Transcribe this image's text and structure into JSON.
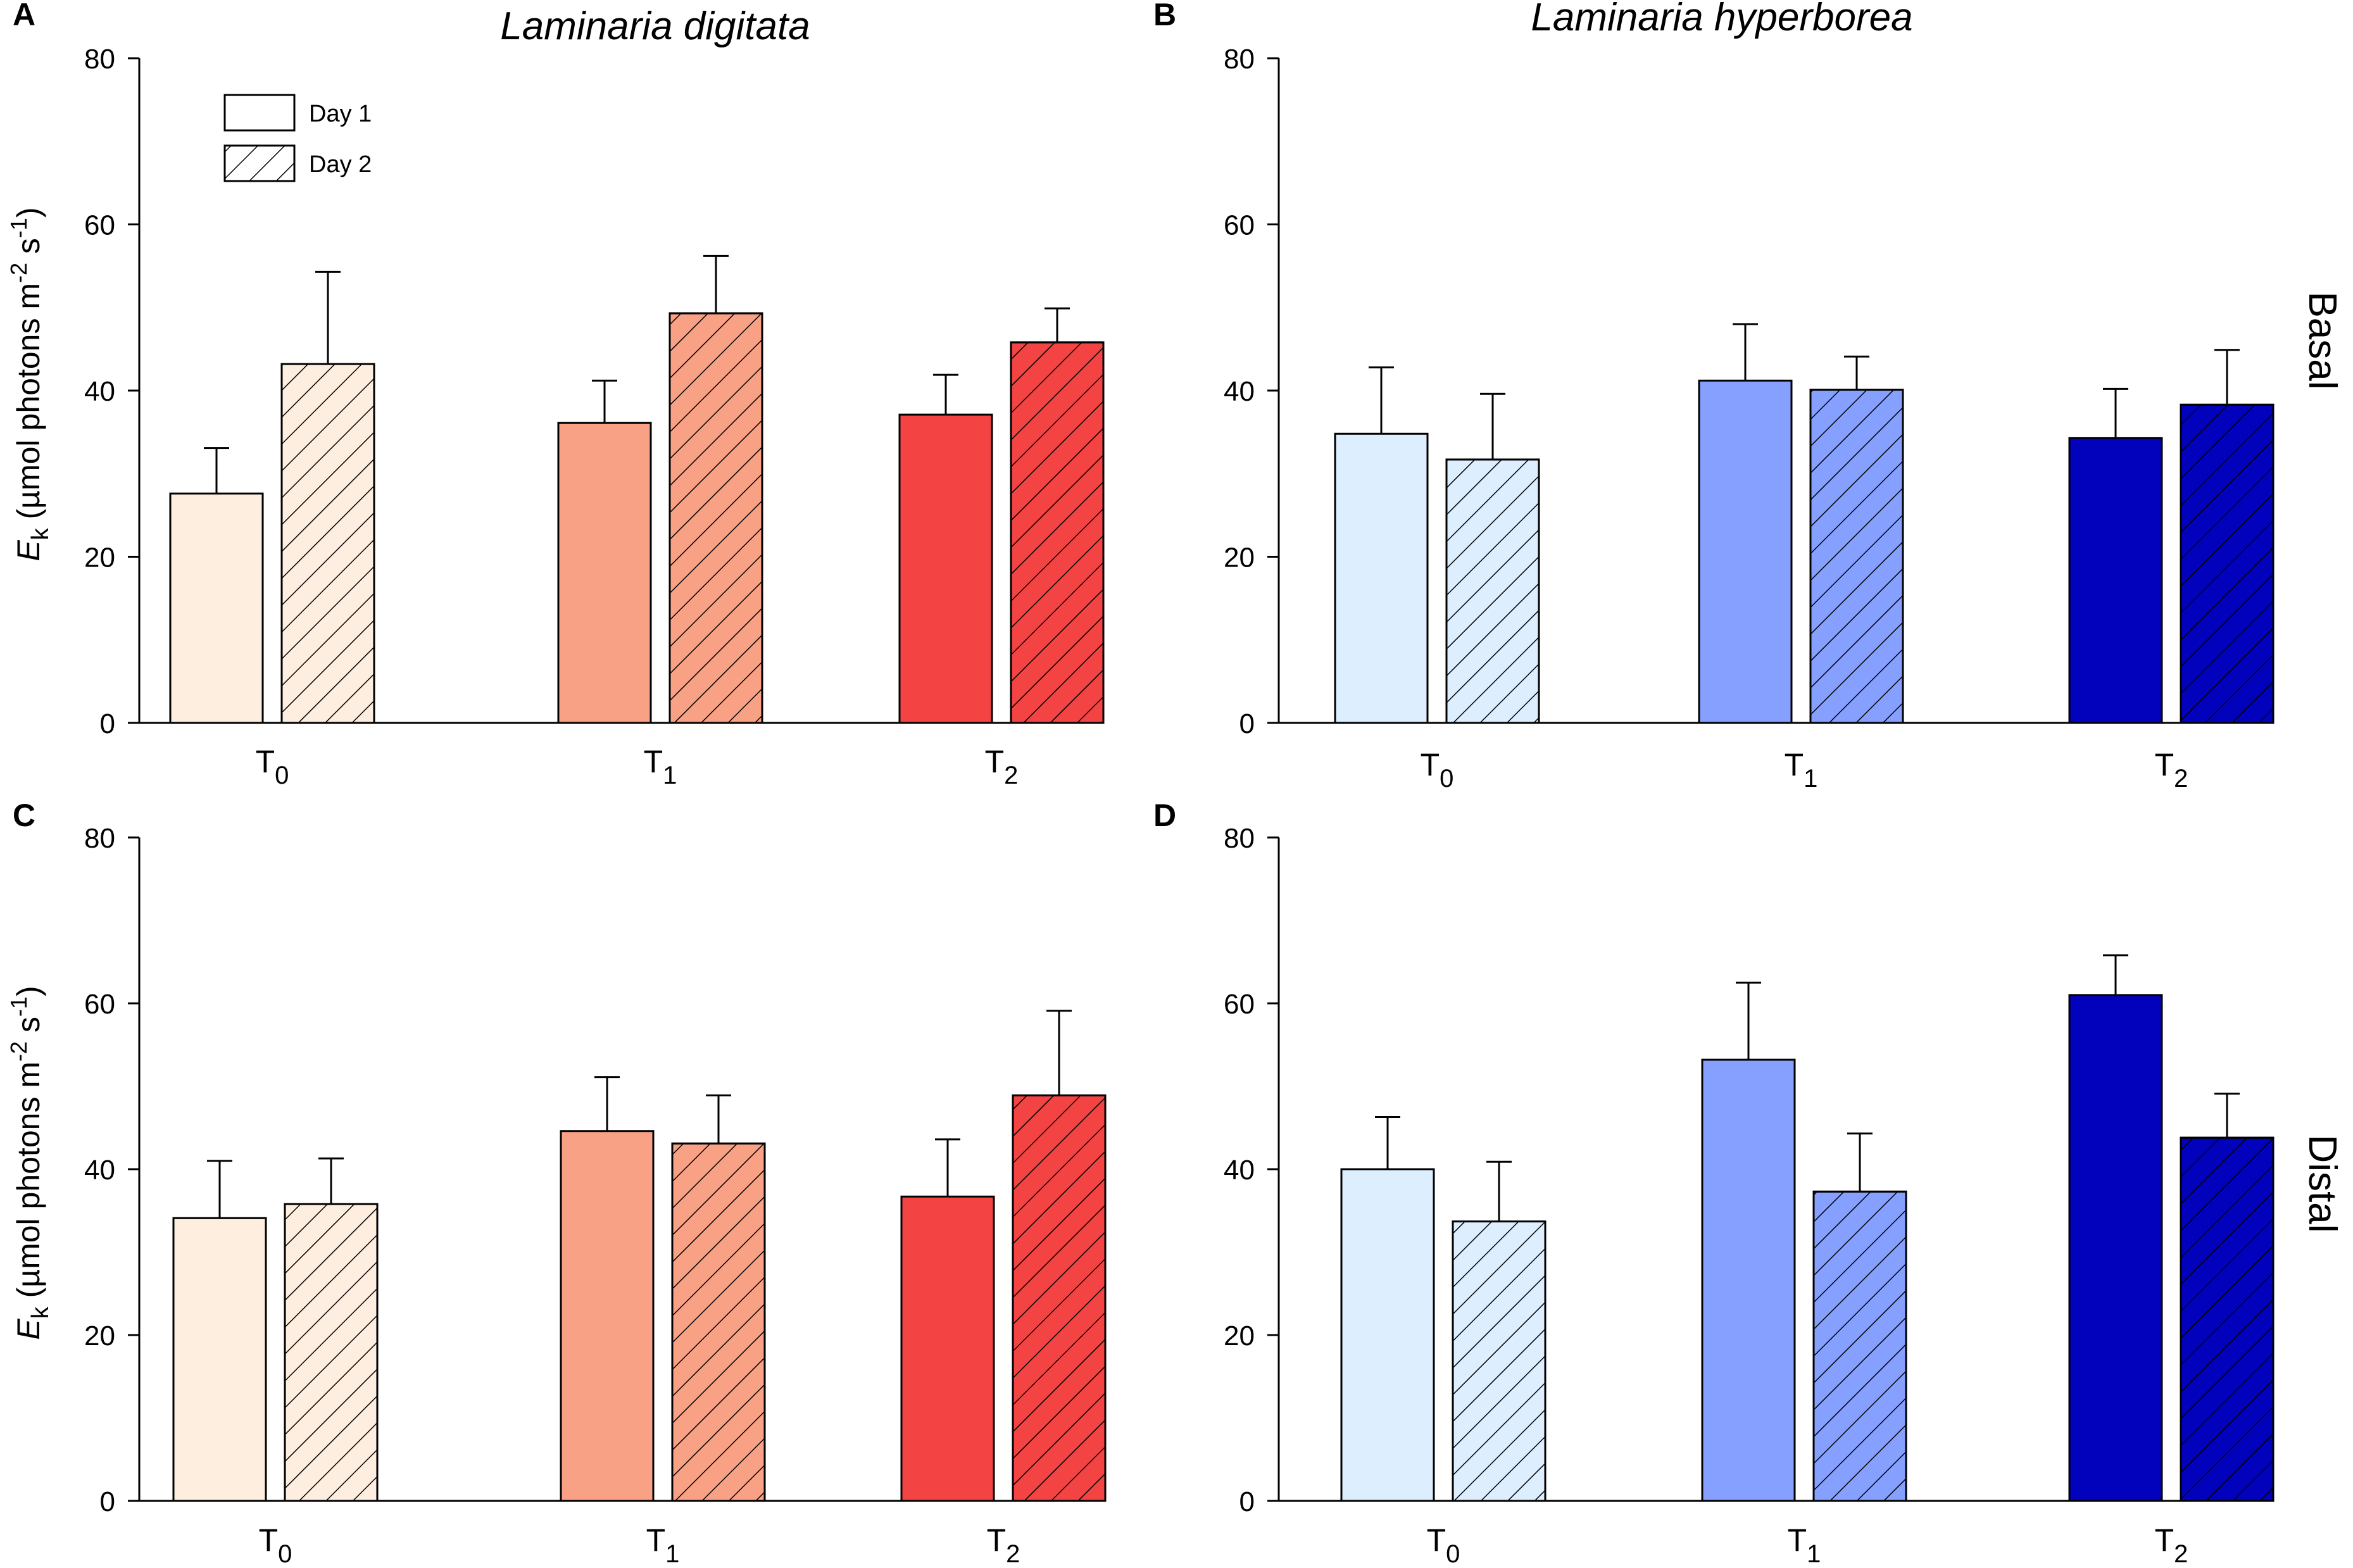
{
  "figure": {
    "row_labels": [
      "Basal",
      "Distal"
    ],
    "y_axis_label": {
      "symbol": "E",
      "subscript": "k",
      "text": " (µmol photons m",
      "exp1": "-2",
      "mid": " s",
      "exp2": "-1",
      "close": ")"
    },
    "legend": [
      {
        "label": "Day 1",
        "hatched": false
      },
      {
        "label": "Day 2",
        "hatched": true
      }
    ],
    "colors": {
      "red": [
        "#fdeee0",
        "#f9a184",
        "#f44343"
      ],
      "blue": [
        "#ddeeff",
        "#86a0ff",
        "#0202bd"
      ]
    }
  },
  "chart_data": [
    {
      "panel": "A",
      "type": "bar",
      "title": "Laminaria digitata",
      "row": "Basal",
      "palette": "red",
      "categories": [
        {
          "base": "T",
          "sub": "0"
        },
        {
          "base": "T",
          "sub": "1"
        },
        {
          "base": "T",
          "sub": "2"
        }
      ],
      "series": [
        {
          "name": "Day 1",
          "values": [
            27.6,
            36.1,
            37.1
          ],
          "errors": [
            5.5,
            5.1,
            4.8
          ]
        },
        {
          "name": "Day 2",
          "values": [
            43.2,
            49.3,
            45.8
          ],
          "errors": [
            11.1,
            6.9,
            4.1
          ]
        }
      ],
      "ylim": [
        0,
        80
      ],
      "yticks": [
        0,
        20,
        40,
        60,
        80
      ],
      "show_legend": true
    },
    {
      "panel": "B",
      "type": "bar",
      "title": "Laminaria hyperborea",
      "row": "Basal",
      "palette": "blue",
      "categories": [
        {
          "base": "T",
          "sub": "0"
        },
        {
          "base": "T",
          "sub": "1"
        },
        {
          "base": "T",
          "sub": "2"
        }
      ],
      "series": [
        {
          "name": "Day 1",
          "values": [
            34.8,
            41.2,
            34.3
          ],
          "errors": [
            8.0,
            6.8,
            5.9
          ]
        },
        {
          "name": "Day 2",
          "values": [
            31.7,
            40.1,
            38.3
          ],
          "errors": [
            7.9,
            4.0,
            6.6
          ]
        }
      ],
      "ylim": [
        0,
        80
      ],
      "yticks": [
        0,
        20,
        40,
        60,
        80
      ],
      "show_legend": false
    },
    {
      "panel": "C",
      "type": "bar",
      "title": "",
      "row": "Distal",
      "palette": "red",
      "categories": [
        {
          "base": "T",
          "sub": "0"
        },
        {
          "base": "T",
          "sub": "1"
        },
        {
          "base": "T",
          "sub": "2"
        }
      ],
      "series": [
        {
          "name": "Day 1",
          "values": [
            34.1,
            44.6,
            36.7
          ],
          "errors": [
            6.9,
            6.5,
            6.9
          ]
        },
        {
          "name": "Day 2",
          "values": [
            35.8,
            43.1,
            48.9
          ],
          "errors": [
            5.5,
            5.8,
            10.2
          ]
        }
      ],
      "ylim": [
        0,
        80
      ],
      "yticks": [
        0,
        20,
        40,
        60,
        80
      ],
      "show_legend": false
    },
    {
      "panel": "D",
      "type": "bar",
      "title": "",
      "row": "Distal",
      "palette": "blue",
      "categories": [
        {
          "base": "T",
          "sub": "0"
        },
        {
          "base": "T",
          "sub": "1"
        },
        {
          "base": "T",
          "sub": "2"
        }
      ],
      "series": [
        {
          "name": "Day 1",
          "values": [
            40.0,
            53.2,
            61.0
          ],
          "errors": [
            6.3,
            9.3,
            4.8
          ]
        },
        {
          "name": "Day 2",
          "values": [
            33.7,
            37.3,
            43.8
          ],
          "errors": [
            7.2,
            7.0,
            5.3
          ]
        }
      ],
      "ylim": [
        0,
        80
      ],
      "yticks": [
        0,
        20,
        40,
        60,
        80
      ],
      "show_legend": false
    }
  ]
}
